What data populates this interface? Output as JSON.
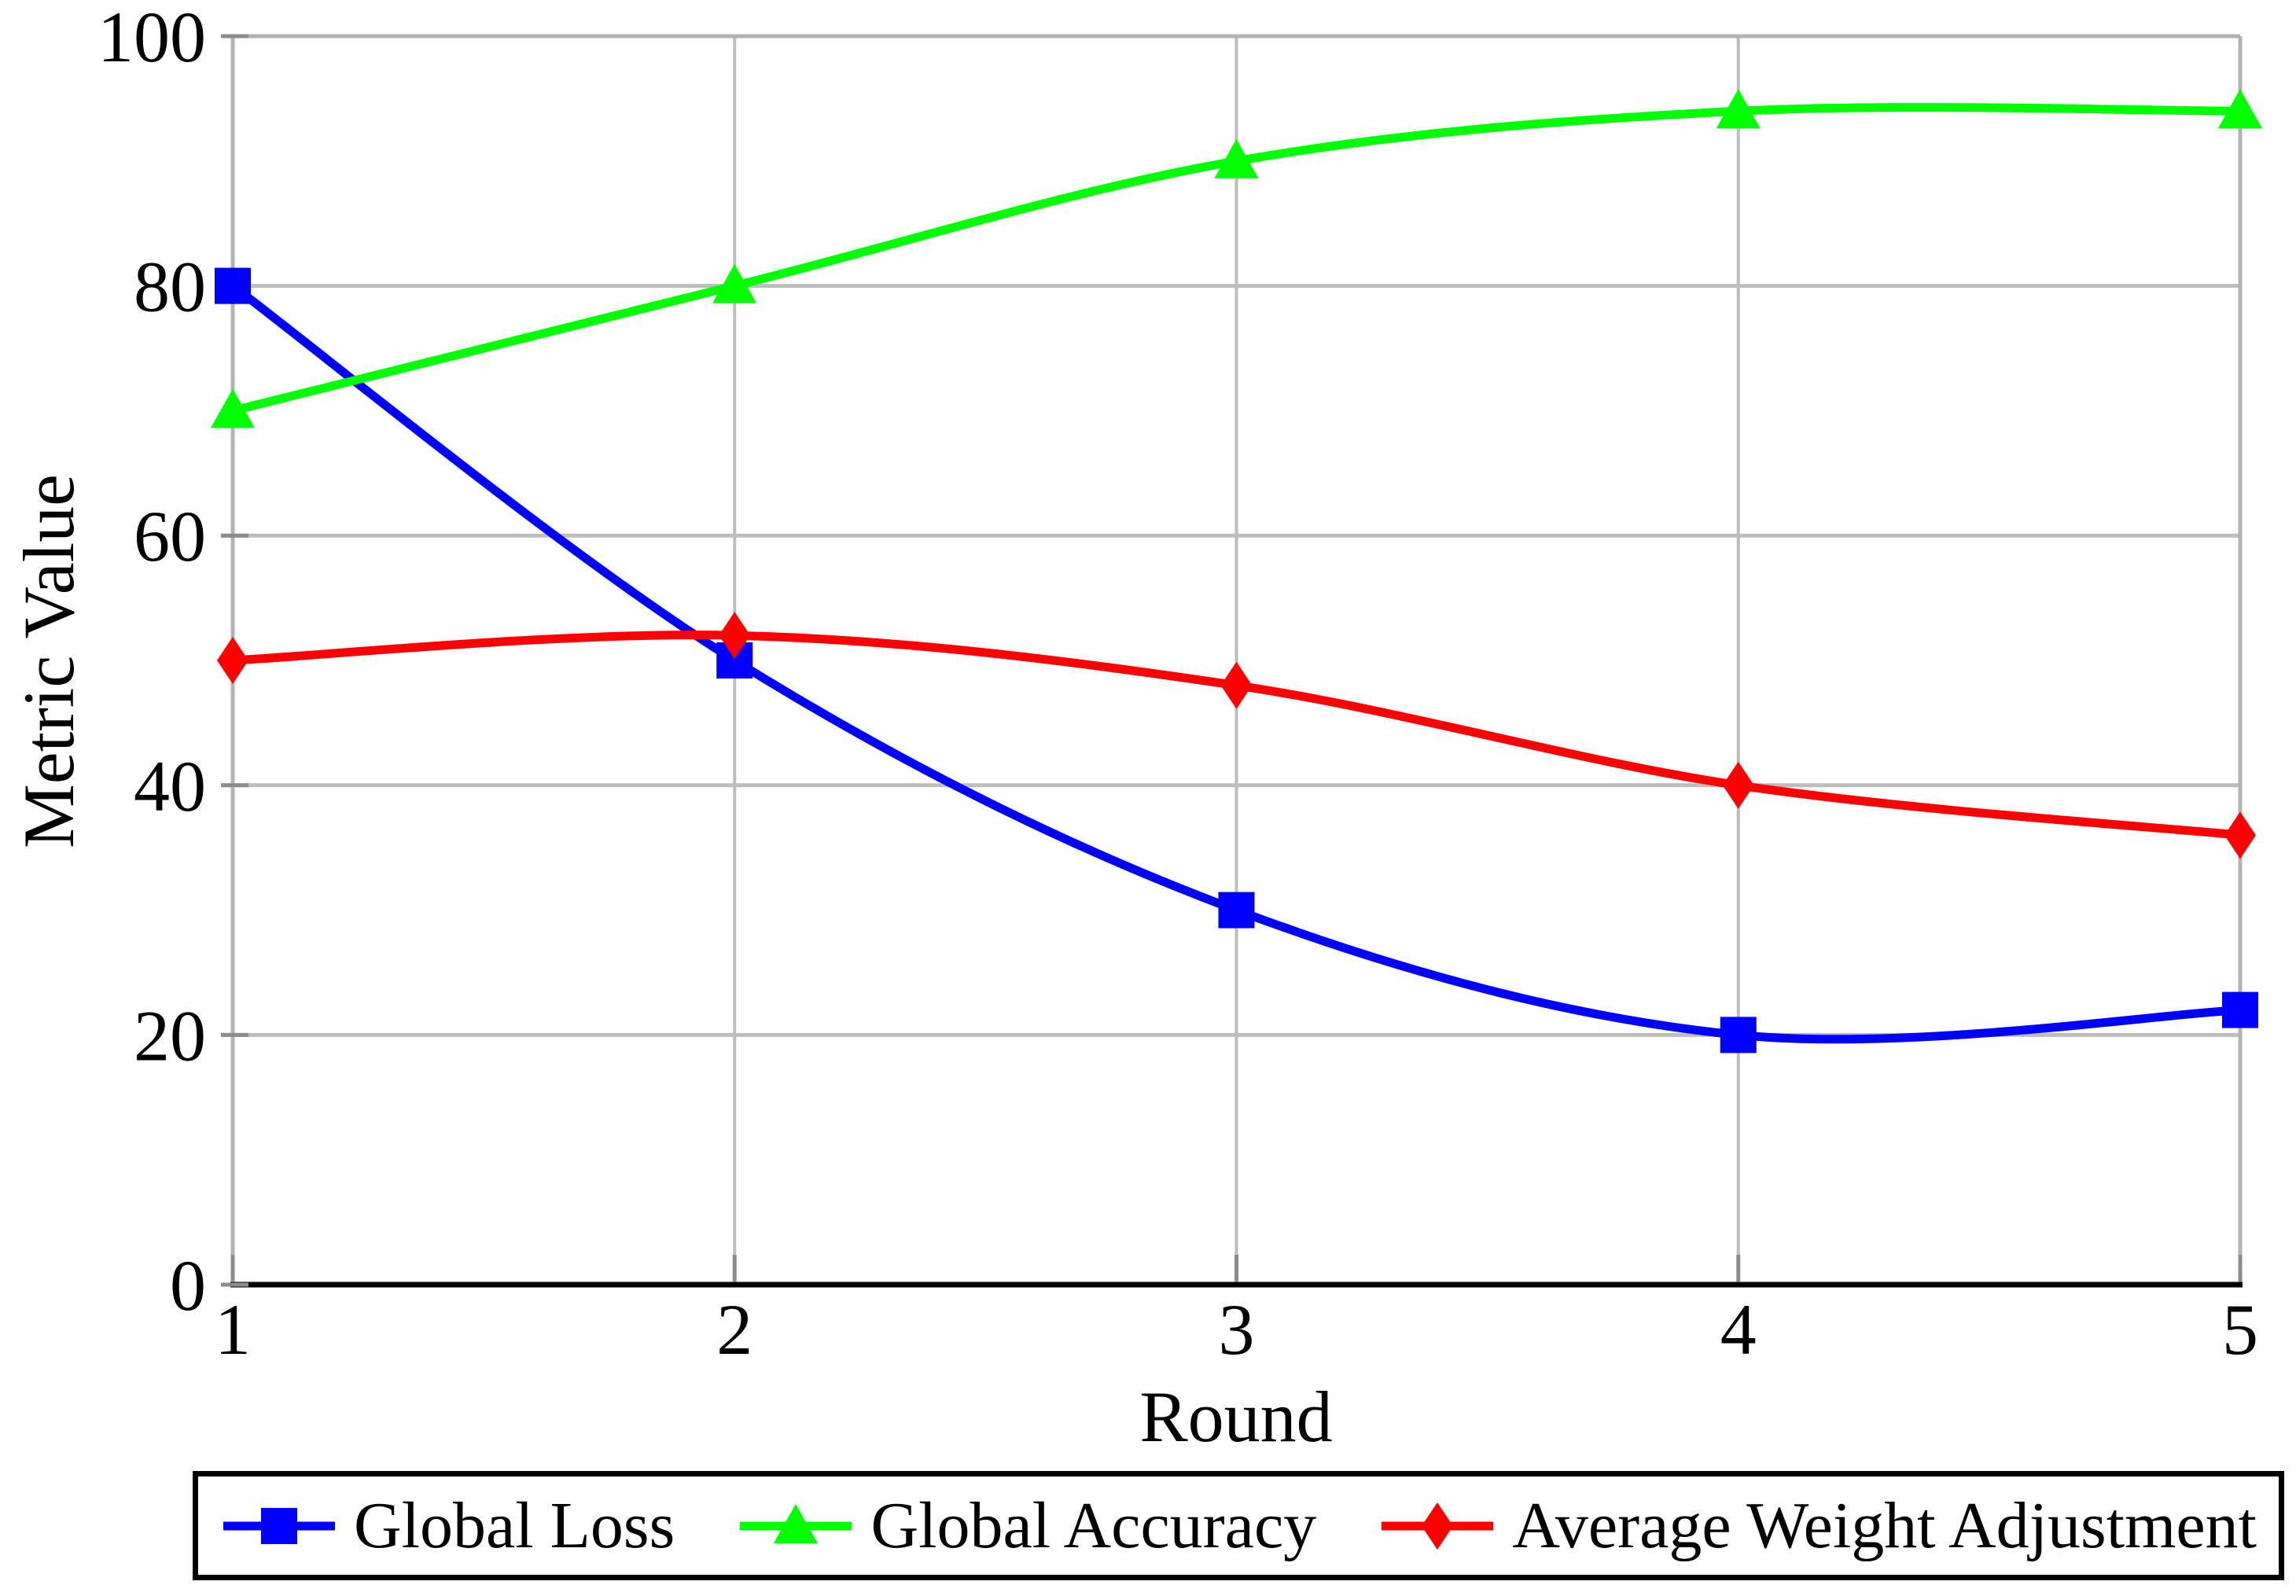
{
  "page": {
    "background": "#ffffff"
  },
  "chart_data": {
    "type": "line",
    "title": "",
    "xlabel": "Round",
    "ylabel": "Metric Value",
    "x": [
      1,
      2,
      3,
      4,
      5
    ],
    "xlim": [
      1,
      5
    ],
    "ylim": [
      0,
      100
    ],
    "xticks": [
      "1",
      "2",
      "3",
      "4",
      "5"
    ],
    "yticks": [
      "0",
      "20",
      "40",
      "60",
      "80",
      "100"
    ],
    "grid": true,
    "smooth": true,
    "legend_position": "bottom",
    "colors": {
      "grid": "#bdbdbd",
      "frame": "#b3b3b3",
      "axis": "#000000",
      "tick": "#8c8c8c",
      "text": "#000000"
    },
    "series": [
      {
        "name": "Global Loss",
        "color": "#0000ff",
        "marker": "square",
        "values": [
          80,
          50,
          30,
          20,
          22
        ]
      },
      {
        "name": "Global Accuracy",
        "color": "#00ff00",
        "marker": "triangle",
        "values": [
          70,
          80,
          90,
          94,
          94
        ]
      },
      {
        "name": "Average Weight Adjustment",
        "color": "#ff0000",
        "marker": "diamond",
        "values": [
          50,
          52,
          48,
          40,
          36
        ]
      }
    ]
  }
}
